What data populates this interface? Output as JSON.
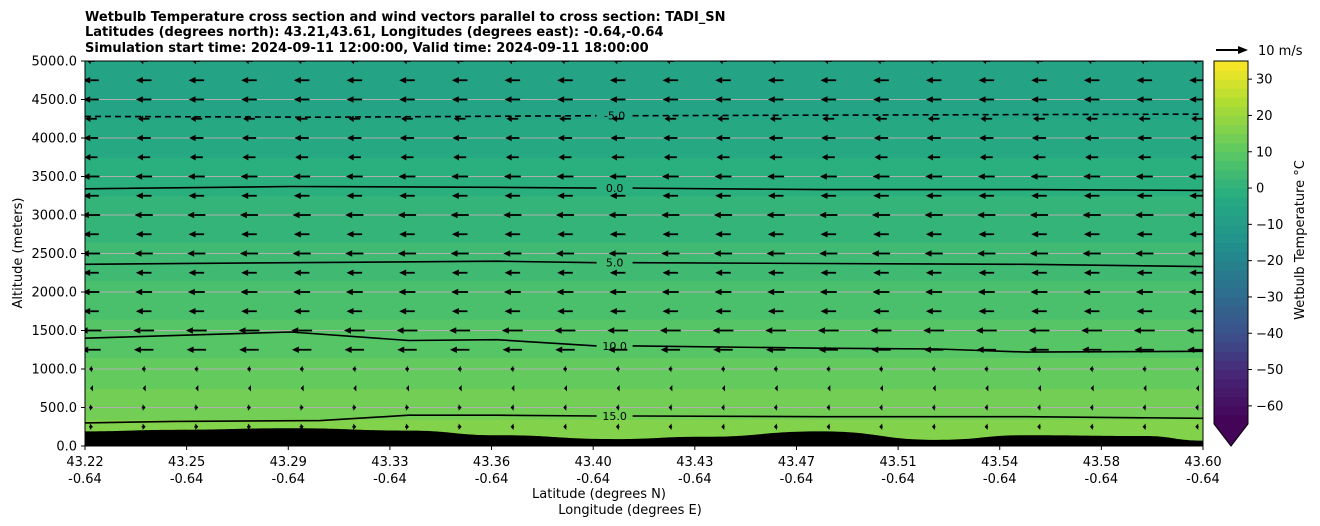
{
  "chart_data": {
    "type": "contour",
    "title": [
      "Wetbulb Temperature cross section and wind vectors parallel to cross section: TADI_SN",
      "Latitudes (degrees north): 43.21,43.61, Longitudes (degrees east): -0.64,-0.64",
      "Simulation start time: 2024-09-11 12:00:00, Valid time: 2024-09-11 18:00:00"
    ],
    "xlabel": [
      "Latitude (degrees N)",
      "Longitude (degrees E)"
    ],
    "ylabel": "Altitude (meters)",
    "xlim": [
      43.22,
      43.6
    ],
    "ylim": [
      0,
      5000
    ],
    "x_ticks": [
      {
        "lat": "43.22",
        "lon": "-0.64"
      },
      {
        "lat": "43.25",
        "lon": "-0.64"
      },
      {
        "lat": "43.29",
        "lon": "-0.64"
      },
      {
        "lat": "43.33",
        "lon": "-0.64"
      },
      {
        "lat": "43.36",
        "lon": "-0.64"
      },
      {
        "lat": "43.40",
        "lon": "-0.64"
      },
      {
        "lat": "43.43",
        "lon": "-0.64"
      },
      {
        "lat": "43.47",
        "lon": "-0.64"
      },
      {
        "lat": "43.51",
        "lon": "-0.64"
      },
      {
        "lat": "43.54",
        "lon": "-0.64"
      },
      {
        "lat": "43.58",
        "lon": "-0.64"
      },
      {
        "lat": "43.60",
        "lon": "-0.64"
      }
    ],
    "y_ticks": [
      "0.0",
      "500.0",
      "1000.0",
      "1500.0",
      "2000.0",
      "2500.0",
      "3000.0",
      "3500.0",
      "4000.0",
      "4500.0",
      "5000.0"
    ],
    "y_tick_values": [
      0,
      500,
      1000,
      1500,
      2000,
      2500,
      3000,
      3500,
      4000,
      4500,
      5000
    ],
    "grid": "horizontal",
    "colorbar": {
      "label": "Wetbulb Temperature °C",
      "colormap": "viridis",
      "range": [
        -65,
        35
      ],
      "extend": "min",
      "ticks": [
        "30",
        "20",
        "10",
        "0",
        "−10",
        "−20",
        "−30",
        "−40",
        "−50",
        "−60"
      ],
      "tick_values": [
        30,
        20,
        10,
        0,
        -10,
        -20,
        -30,
        -40,
        -50,
        -60
      ]
    },
    "quiver_key": {
      "label": "10 m/s",
      "speed": 10
    },
    "contours": [
      {
        "level": -5,
        "label": "-5.0",
        "style": "dashed",
        "points": [
          [
            43.22,
            4280
          ],
          [
            43.3,
            4270
          ],
          [
            43.4,
            4290
          ],
          [
            43.5,
            4300
          ],
          [
            43.6,
            4310
          ]
        ]
      },
      {
        "level": 0,
        "label": "0.0",
        "style": "solid",
        "points": [
          [
            43.22,
            3340
          ],
          [
            43.29,
            3370
          ],
          [
            43.36,
            3360
          ],
          [
            43.4,
            3350
          ],
          [
            43.47,
            3330
          ],
          [
            43.54,
            3330
          ],
          [
            43.6,
            3320
          ]
        ]
      },
      {
        "level": 5,
        "label": "5.0",
        "style": "solid",
        "points": [
          [
            43.22,
            2360
          ],
          [
            43.29,
            2380
          ],
          [
            43.36,
            2400
          ],
          [
            43.4,
            2380
          ],
          [
            43.47,
            2370
          ],
          [
            43.54,
            2360
          ],
          [
            43.6,
            2330
          ]
        ]
      },
      {
        "level": 10,
        "label": "10.0",
        "style": "solid",
        "points": [
          [
            43.22,
            1400
          ],
          [
            43.29,
            1480
          ],
          [
            43.33,
            1370
          ],
          [
            43.36,
            1380
          ],
          [
            43.4,
            1300
          ],
          [
            43.47,
            1270
          ],
          [
            43.51,
            1260
          ],
          [
            43.54,
            1220
          ],
          [
            43.6,
            1230
          ]
        ]
      },
      {
        "level": 15,
        "label": "15.0",
        "style": "solid",
        "points": [
          [
            43.22,
            300
          ],
          [
            43.25,
            320
          ],
          [
            43.3,
            330
          ],
          [
            43.33,
            400
          ],
          [
            43.36,
            400
          ],
          [
            43.4,
            390
          ],
          [
            43.47,
            380
          ],
          [
            43.54,
            380
          ],
          [
            43.6,
            360
          ]
        ]
      }
    ],
    "terrain": {
      "points": [
        [
          43.22,
          190
        ],
        [
          43.25,
          210
        ],
        [
          43.29,
          230
        ],
        [
          43.33,
          200
        ],
        [
          43.36,
          140
        ],
        [
          43.4,
          90
        ],
        [
          43.43,
          120
        ],
        [
          43.47,
          190
        ],
        [
          43.51,
          80
        ],
        [
          43.54,
          140
        ],
        [
          43.58,
          130
        ],
        [
          43.6,
          70
        ]
      ]
    },
    "wetbulb_profile": {
      "altitudes": [
        0,
        500,
        1000,
        1500,
        2000,
        2500,
        3000,
        3500,
        4000,
        4500,
        5000
      ],
      "values": [
        17,
        14,
        11,
        8,
        6,
        3,
        1,
        -1,
        -4,
        -6,
        -7
      ]
    },
    "wind": {
      "levels": [
        250,
        500,
        750,
        1000,
        1250,
        1500,
        1750,
        2000,
        2250,
        2500,
        2750,
        3000,
        3250,
        3500,
        3750,
        4000,
        4250,
        4500,
        4750,
        5000
      ],
      "speeds_ms": [
        1.5,
        1.5,
        0.5,
        1.5,
        7.5,
        8,
        6,
        6.5,
        6,
        7,
        6,
        7,
        6,
        6.5,
        5,
        5.5,
        4.5,
        6,
        6,
        3
      ]
    }
  }
}
